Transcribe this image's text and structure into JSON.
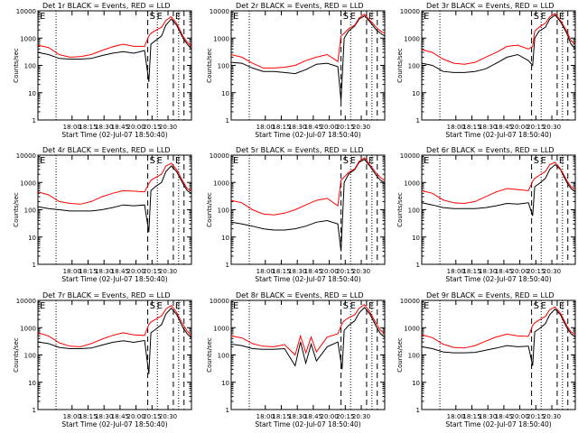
{
  "figure": {
    "colors": {
      "events": "#000000",
      "lld": "#ff0000",
      "axis": "#000000"
    },
    "xtick_labels": [
      "18:00",
      "18:15",
      "18:30",
      "18:45",
      "20:00",
      "20:15",
      "20:30"
    ],
    "xlabel": "Start Time (02-Jul-07 18:50:40)",
    "ylabel": "Counts/sec",
    "yscale": "log",
    "ylim": [
      1,
      10000
    ],
    "ytick_labels": [
      "1",
      "10",
      "100",
      "1000",
      "10000"
    ],
    "xlim_minutes": [
      0,
      144
    ],
    "corner_labels": [
      "E",
      "S",
      "E",
      "E"
    ]
  },
  "chart_data": [
    {
      "type": "line",
      "title": "Det 1r BLACK = Events, RED = LLD",
      "x": [
        0,
        10,
        20,
        30,
        40,
        50,
        60,
        70,
        80,
        90,
        100,
        104,
        106,
        110,
        116,
        120,
        125,
        130,
        136,
        140,
        144
      ],
      "series": [
        {
          "values": [
            300,
            250,
            180,
            170,
            170,
            180,
            230,
            280,
            320,
            280,
            350,
            25,
            600,
            800,
            1200,
            3000,
            5000,
            3000,
            1000,
            600,
            400
          ]
        },
        {
          "values": [
            550,
            450,
            250,
            200,
            210,
            250,
            350,
            480,
            600,
            500,
            500,
            1200,
            1500,
            1900,
            2500,
            4500,
            6000,
            3500,
            1200,
            700,
            500
          ]
        }
      ],
      "vlines_dotted": [
        17,
        112,
        132
      ],
      "vlines_dashed": [
        103,
        127,
        137
      ]
    },
    {
      "type": "line",
      "title": "Det 2r BLACK = Events, RED = LLD",
      "x": [
        0,
        10,
        20,
        30,
        40,
        50,
        60,
        70,
        80,
        90,
        100,
        103,
        106,
        110,
        116,
        120,
        125,
        130,
        136,
        140,
        144
      ],
      "series": [
        {
          "values": [
            130,
            120,
            80,
            60,
            60,
            55,
            50,
            70,
            110,
            120,
            90,
            5,
            1000,
            1800,
            2800,
            5000,
            6500,
            4000,
            2000,
            1500,
            1200
          ]
        },
        {
          "values": [
            250,
            200,
            120,
            80,
            80,
            85,
            100,
            150,
            200,
            250,
            140,
            1200,
            1500,
            2200,
            3000,
            5500,
            7500,
            4500,
            2500,
            1800,
            1500
          ]
        }
      ],
      "vlines_dotted": [
        17,
        112,
        132
      ],
      "vlines_dashed": [
        103,
        127,
        137
      ]
    },
    {
      "type": "line",
      "title": "Det 3r BLACK = Events, RED = LLD",
      "x": [
        0,
        10,
        20,
        30,
        40,
        50,
        60,
        70,
        80,
        90,
        100,
        104,
        106,
        110,
        116,
        120,
        125,
        130,
        136,
        140,
        144
      ],
      "series": [
        {
          "values": [
            120,
            100,
            60,
            55,
            55,
            60,
            75,
            120,
            200,
            250,
            150,
            100,
            1000,
            1800,
            2500,
            5000,
            7000,
            4000,
            1500,
            600,
            400
          ]
        },
        {
          "values": [
            380,
            300,
            170,
            120,
            110,
            130,
            200,
            300,
            500,
            550,
            400,
            500,
            1800,
            2500,
            3500,
            6000,
            8000,
            4500,
            1800,
            800,
            600
          ]
        }
      ],
      "vlines_dotted": [
        17,
        112,
        132
      ],
      "vlines_dashed": [
        103,
        127,
        137
      ]
    },
    {
      "type": "line",
      "title": "Det 4r BLACK = Events, RED = LLD",
      "x": [
        0,
        10,
        20,
        30,
        40,
        50,
        60,
        70,
        80,
        90,
        100,
        104,
        106,
        110,
        116,
        120,
        125,
        130,
        136,
        140,
        144
      ],
      "series": [
        {
          "values": [
            130,
            110,
            100,
            90,
            90,
            90,
            100,
            120,
            150,
            140,
            150,
            15,
            500,
            700,
            1000,
            2500,
            4000,
            2500,
            900,
            500,
            400
          ]
        },
        {
          "values": [
            450,
            350,
            200,
            170,
            160,
            200,
            300,
            400,
            500,
            480,
            450,
            900,
            1200,
            1500,
            2000,
            4000,
            5000,
            3000,
            1100,
            600,
            500
          ]
        }
      ],
      "vlines_dotted": [
        17,
        112,
        132
      ],
      "vlines_dashed": [
        103,
        127,
        137
      ]
    },
    {
      "type": "line",
      "title": "Det 5r BLACK = Events, RED = LLD",
      "x": [
        0,
        10,
        20,
        30,
        40,
        50,
        60,
        70,
        80,
        90,
        100,
        103,
        106,
        110,
        116,
        120,
        125,
        130,
        136,
        140,
        144
      ],
      "series": [
        {
          "values": [
            35,
            30,
            25,
            20,
            18,
            18,
            20,
            25,
            35,
            40,
            30,
            3,
            1000,
            2000,
            3000,
            5500,
            7000,
            4000,
            1800,
            1200,
            1000
          ]
        },
        {
          "values": [
            220,
            180,
            100,
            70,
            65,
            75,
            100,
            150,
            220,
            260,
            140,
            1200,
            1600,
            2300,
            3200,
            6000,
            8000,
            4500,
            2200,
            1500,
            1200
          ]
        }
      ],
      "vlines_dotted": [
        17,
        112,
        132
      ],
      "vlines_dashed": [
        103,
        127,
        137
      ]
    },
    {
      "type": "line",
      "title": "Det 6r BLACK = Events, RED = LLD",
      "x": [
        0,
        10,
        20,
        30,
        40,
        50,
        60,
        70,
        80,
        90,
        100,
        104,
        106,
        110,
        116,
        120,
        125,
        130,
        136,
        140,
        144
      ],
      "series": [
        {
          "values": [
            180,
            150,
            120,
            110,
            110,
            110,
            120,
            140,
            170,
            160,
            180,
            60,
            700,
            900,
            1400,
            3000,
            4500,
            3000,
            1000,
            600,
            450
          ]
        },
        {
          "values": [
            500,
            400,
            230,
            180,
            170,
            200,
            300,
            450,
            600,
            550,
            500,
            1100,
            1400,
            1800,
            2500,
            4500,
            5500,
            3200,
            1200,
            700,
            550
          ]
        }
      ],
      "vlines_dotted": [
        17,
        112,
        132
      ],
      "vlines_dashed": [
        103,
        127,
        137
      ]
    },
    {
      "type": "line",
      "title": "Det 7r BLACK = Events, RED = LLD",
      "x": [
        0,
        10,
        20,
        30,
        40,
        50,
        60,
        70,
        80,
        90,
        100,
        104,
        106,
        110,
        116,
        120,
        125,
        130,
        136,
        140,
        144
      ],
      "series": [
        {
          "values": [
            300,
            260,
            190,
            170,
            170,
            180,
            230,
            290,
            330,
            290,
            340,
            20,
            650,
            850,
            1300,
            3200,
            5200,
            3100,
            1000,
            600,
            420
          ]
        },
        {
          "values": [
            650,
            500,
            280,
            210,
            200,
            260,
            380,
            520,
            650,
            540,
            520,
            1300,
            1600,
            2000,
            2700,
            4800,
            6500,
            3700,
            1300,
            750,
            520
          ]
        }
      ],
      "vlines_dotted": [
        17,
        112,
        132
      ],
      "vlines_dashed": [
        103,
        127,
        137
      ]
    },
    {
      "type": "line",
      "title": "Det 8r BLACK = Events, RED = LLD",
      "x": [
        0,
        10,
        20,
        30,
        40,
        50,
        60,
        65,
        70,
        75,
        80,
        90,
        100,
        104,
        106,
        110,
        116,
        120,
        125,
        130,
        136,
        140,
        144
      ],
      "series": [
        {
          "values": [
            250,
            220,
            170,
            160,
            160,
            170,
            40,
            300,
            50,
            250,
            60,
            200,
            300,
            30,
            800,
            1200,
            1800,
            3500,
            5500,
            3200,
            1100,
            600,
            450
          ]
        },
        {
          "values": [
            500,
            420,
            260,
            210,
            200,
            240,
            100,
            500,
            120,
            450,
            130,
            450,
            600,
            1400,
            1800,
            2300,
            3000,
            5200,
            7000,
            3800,
            1400,
            800,
            600
          ]
        }
      ],
      "vlines_dotted": [
        17,
        112,
        132
      ],
      "vlines_dashed": [
        103,
        127,
        137
      ]
    },
    {
      "type": "line",
      "title": "Det 9r BLACK = Events, RED = LLD",
      "x": [
        0,
        10,
        20,
        30,
        40,
        50,
        60,
        70,
        80,
        90,
        100,
        104,
        106,
        110,
        116,
        120,
        125,
        130,
        136,
        140,
        144
      ],
      "series": [
        {
          "values": [
            200,
            170,
            130,
            120,
            120,
            125,
            150,
            180,
            220,
            200,
            210,
            40,
            700,
            900,
            1400,
            3000,
            4800,
            3000,
            1000,
            600,
            450
          ]
        },
        {
          "values": [
            550,
            430,
            250,
            190,
            180,
            220,
            320,
            460,
            580,
            500,
            480,
            1200,
            1500,
            1900,
            2600,
            4600,
            5800,
            3400,
            1200,
            700,
            550
          ]
        }
      ],
      "vlines_dotted": [
        17,
        112,
        132
      ],
      "vlines_dashed": [
        103,
        127,
        137
      ]
    }
  ]
}
